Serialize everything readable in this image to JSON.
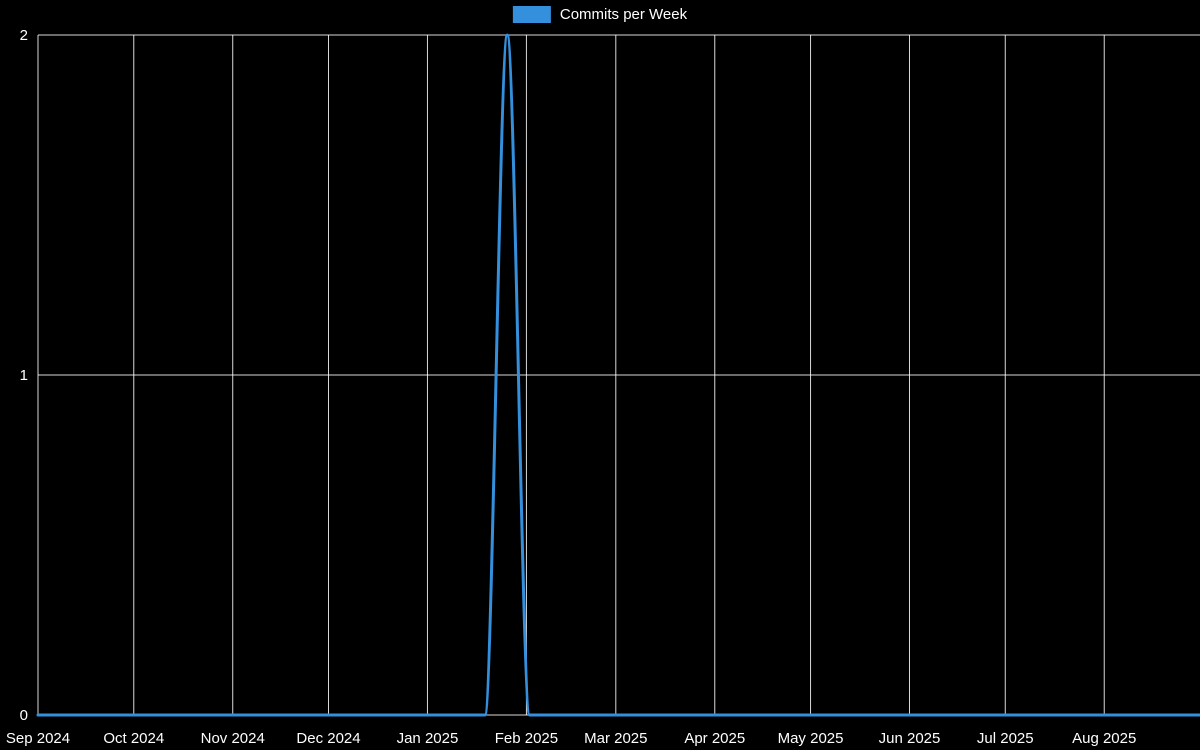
{
  "chart_data": {
    "type": "line",
    "title": "Commits per Week",
    "legend": {
      "position": "top-center",
      "label": "Commits per Week"
    },
    "background": "#000000",
    "grid_color": "#ffffff",
    "text_color": "#ffffff",
    "xlabel": "",
    "ylabel": "",
    "ylim": [
      0,
      2
    ],
    "y_ticks": [
      0,
      1,
      2
    ],
    "x_range": [
      "2024-09-01",
      "2025-08-31"
    ],
    "x_ticks": [
      {
        "date": "2024-09-01",
        "label": "Sep 2024"
      },
      {
        "date": "2024-10-01",
        "label": "Oct 2024"
      },
      {
        "date": "2024-11-01",
        "label": "Nov 2024"
      },
      {
        "date": "2024-12-01",
        "label": "Dec 2024"
      },
      {
        "date": "2025-01-01",
        "label": "Jan 2025"
      },
      {
        "date": "2025-02-01",
        "label": "Feb 2025"
      },
      {
        "date": "2025-03-01",
        "label": "Mar 2025"
      },
      {
        "date": "2025-04-01",
        "label": "Apr 2025"
      },
      {
        "date": "2025-05-01",
        "label": "May 2025"
      },
      {
        "date": "2025-06-01",
        "label": "Jun 2025"
      },
      {
        "date": "2025-07-01",
        "label": "Jul 2025"
      },
      {
        "date": "2025-08-01",
        "label": "Aug 2025"
      }
    ],
    "x": [
      "2024-09-01",
      "2024-09-08",
      "2024-09-15",
      "2024-09-22",
      "2024-09-29",
      "2024-10-06",
      "2024-10-13",
      "2024-10-20",
      "2024-10-27",
      "2024-11-03",
      "2024-11-10",
      "2024-11-17",
      "2024-11-24",
      "2024-12-01",
      "2024-12-08",
      "2024-12-15",
      "2024-12-22",
      "2024-12-29",
      "2025-01-05",
      "2025-01-12",
      "2025-01-19",
      "2025-01-26",
      "2025-02-02",
      "2025-02-09",
      "2025-02-16",
      "2025-02-23",
      "2025-03-02",
      "2025-03-09",
      "2025-03-16",
      "2025-03-23",
      "2025-03-30",
      "2025-04-06",
      "2025-04-13",
      "2025-04-20",
      "2025-04-27",
      "2025-05-04",
      "2025-05-11",
      "2025-05-18",
      "2025-05-25",
      "2025-06-01",
      "2025-06-08",
      "2025-06-15",
      "2025-06-22",
      "2025-06-29",
      "2025-07-06",
      "2025-07-13",
      "2025-07-20",
      "2025-07-27",
      "2025-08-03",
      "2025-08-10",
      "2025-08-17",
      "2025-08-24",
      "2025-08-31"
    ],
    "series": [
      {
        "name": "Commits per Week",
        "color": "#3490dc",
        "values": [
          0,
          0,
          0,
          0,
          0,
          0,
          0,
          0,
          0,
          0,
          0,
          0,
          0,
          0,
          0,
          0,
          0,
          0,
          0,
          0,
          0,
          2,
          0,
          0,
          0,
          0,
          0,
          0,
          0,
          0,
          0,
          0,
          0,
          0,
          0,
          0,
          0,
          0,
          0,
          0,
          0,
          0,
          0,
          0,
          0,
          0,
          0,
          0,
          0,
          0,
          0,
          0,
          0
        ]
      }
    ]
  }
}
